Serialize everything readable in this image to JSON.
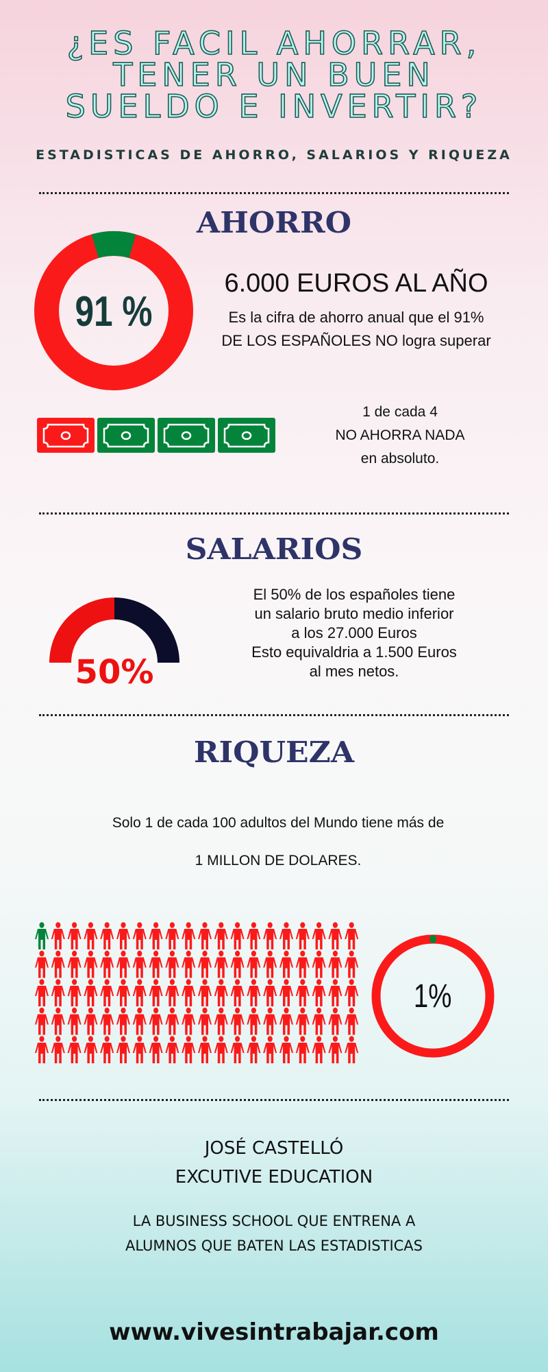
{
  "title": {
    "lines": [
      "¿ES FACIL AHORRAR,",
      "TENER UN BUEN",
      "SUELDO E INVERTIR?"
    ]
  },
  "subtitle": "ESTADISTICAS DE AHORRO, SALARIOS Y RIQUEZA",
  "ahorro": {
    "heading": "AHORRO",
    "donut_percent": 91,
    "donut_label": "91 %",
    "amount": "6.000 EUROS AL AÑO",
    "desc": [
      "Es la cifra de ahorro anual que el 91%",
      "DE LOS ESPAÑOLES NO logra superar"
    ],
    "bills": [
      {
        "color": "red"
      },
      {
        "color": "green"
      },
      {
        "color": "green"
      },
      {
        "color": "green"
      }
    ],
    "note": [
      "1 de cada 4",
      "NO AHORRA NADA",
      "en absoluto."
    ]
  },
  "salarios": {
    "heading": "SALARIOS",
    "gauge_percent": 50,
    "gauge_label": "50%",
    "text": [
      "El 50% de los españoles tiene",
      "un salario bruto medio inferior",
      "a los 27.000 Euros",
      "Esto equivaldria a 1.500 Euros",
      "al mes netos."
    ]
  },
  "riqueza": {
    "heading": "RIQUEZA",
    "text1": "Solo 1 de cada 100 adultos del Mundo tiene más de",
    "text2": "1 MILLON DE DOLARES.",
    "people_total": 100,
    "people_highlighted": 1,
    "ring_percent": 1,
    "ring_label": "1%"
  },
  "footer": {
    "name": "JOSÉ CASTELLÓ",
    "org": "EXCUTIVE EDUCATION",
    "tagline": [
      "LA BUSINESS SCHOOL QUE ENTRENA A",
      "ALUMNOS QUE BATEN LAS ESTADISTICAS"
    ],
    "website": "www.vivesintrabajar.com"
  },
  "colors": {
    "red": "#fb1a1a",
    "green": "#03843a",
    "navy": "#2e3468",
    "dark": "#0b0d2a",
    "teal_title": "#b8f6ef"
  }
}
